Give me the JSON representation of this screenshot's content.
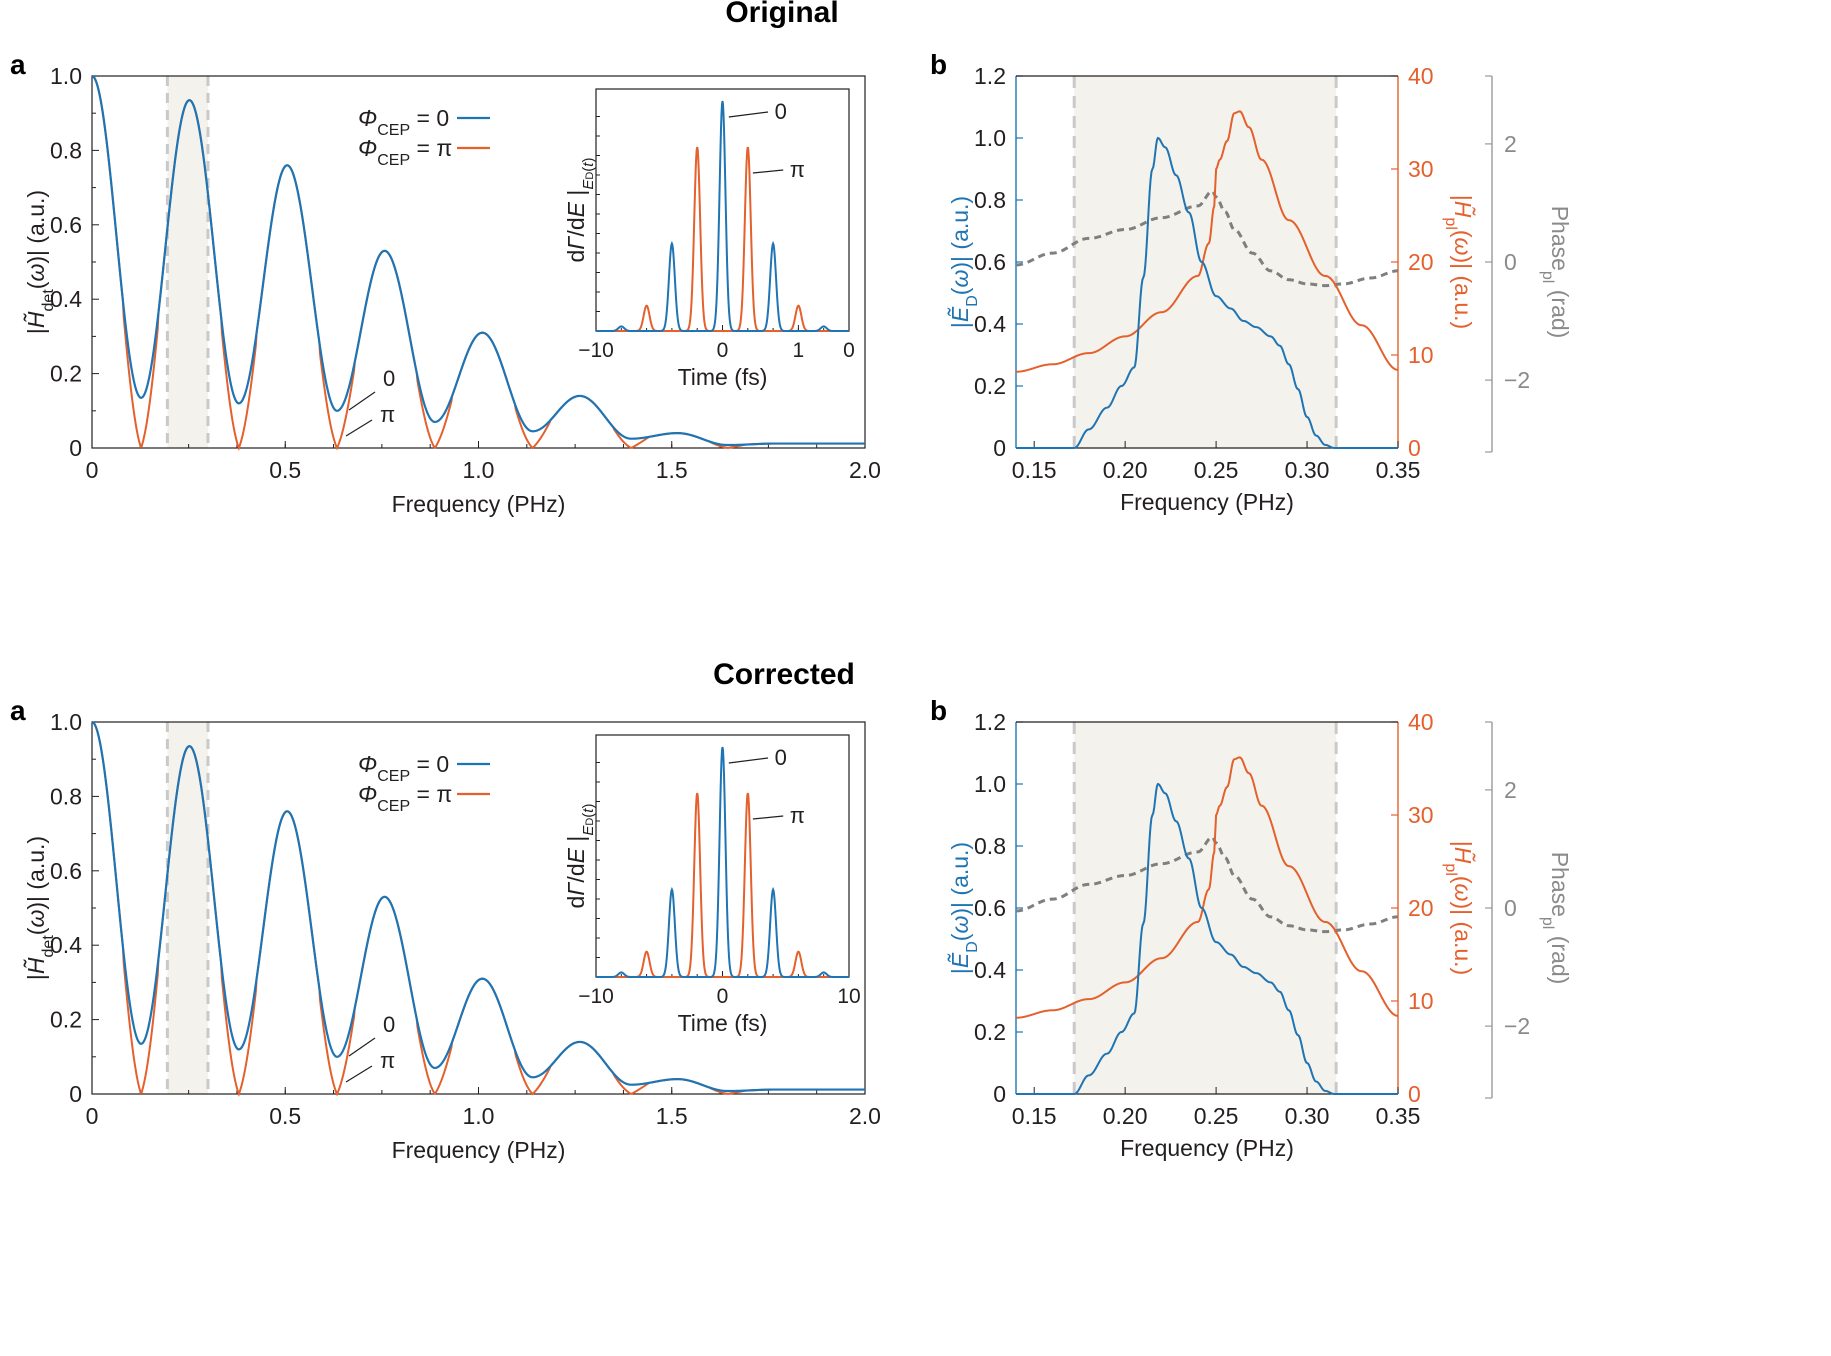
{
  "colors": {
    "phi0": "#1f74b4",
    "phipi": "#e4602c",
    "phase": "#7f7f7f",
    "shade": "#f4f2ec",
    "dashed": "#c9c9c9",
    "axis": "#231f20"
  },
  "titles": [
    "Original",
    "Corrected"
  ],
  "panel_labels": {
    "a": "a",
    "b": "b"
  },
  "chart_data": [
    {
      "panel": "Original a",
      "type": "line",
      "xlabel": "Frequency (PHz)",
      "ylabel": "|H̃det(ω)| (a.u.)",
      "xlim": [
        0,
        2.0
      ],
      "ylim": [
        0,
        1.0
      ],
      "xticks": [
        "0",
        "0.5",
        "1.0",
        "1.5",
        "2.0"
      ],
      "yticks": [
        "0",
        "0.2",
        "0.4",
        "0.6",
        "0.8",
        "1.0"
      ],
      "shaded_band": [
        0.195,
        0.3
      ],
      "legend": [
        "ΦCEP = 0",
        "ΦCEP = π"
      ],
      "annotations": [
        "0",
        "π"
      ],
      "series": [
        {
          "name": "ΦCEP = 0",
          "peaks": [
            {
              "x": 0,
              "y": 1.0
            },
            {
              "x": 0.252,
              "y": 0.935
            },
            {
              "x": 0.505,
              "y": 0.76
            },
            {
              "x": 0.757,
              "y": 0.53
            },
            {
              "x": 1.01,
              "y": 0.31
            },
            {
              "x": 1.262,
              "y": 0.14
            },
            {
              "x": 1.515,
              "y": 0.04
            },
            {
              "x": 1.77,
              "y": 0.01
            },
            {
              "x": 2.0,
              "y": 0.01
            }
          ],
          "troughs": [
            {
              "x": 0.127,
              "y": 0.135
            },
            {
              "x": 0.38,
              "y": 0.12
            },
            {
              "x": 0.634,
              "y": 0.1
            },
            {
              "x": 0.887,
              "y": 0.07
            },
            {
              "x": 1.14,
              "y": 0.05
            },
            {
              "x": 1.395,
              "y": 0.025
            },
            {
              "x": 1.645,
              "y": 0.008
            }
          ]
        },
        {
          "name": "ΦCEP = π",
          "troughs_to_zero_at": [
            0.127,
            0.38,
            0.634,
            0.887,
            1.14,
            1.395,
            1.645
          ]
        }
      ],
      "inset": {
        "xlabel": "Time (fs)",
        "ylabel": "dΓ/dE |ED(t)",
        "xticks": [
          "−10",
          "0",
          "1",
          "0"
        ],
        "xlim": [
          -10,
          10
        ],
        "series": [
          {
            "name": "0",
            "peaks": [
              {
                "x": -4,
                "y": 0.38
              },
              {
                "x": 0,
                "y": 1.0
              },
              {
                "x": 4,
                "y": 0.38
              },
              {
                "x": -8,
                "y": 0.02
              },
              {
                "x": 8,
                "y": 0.02
              }
            ]
          },
          {
            "name": "π",
            "peaks": [
              {
                "x": -2,
                "y": 0.8
              },
              {
                "x": 2,
                "y": 0.8
              },
              {
                "x": -6,
                "y": 0.11
              },
              {
                "x": 6,
                "y": 0.11
              }
            ]
          }
        ]
      }
    },
    {
      "panel": "Original b",
      "type": "line",
      "xlabel": "Frequency (PHz)",
      "ylabel_left": "|ẼD(ω)| (a.u.)",
      "ylabel_right": "|H̃pl(ω)| (a.u.)",
      "ylabel_right2": "Phasepl (rad)",
      "xlim": [
        0.14,
        0.35
      ],
      "ylim_left": [
        0,
        1.2
      ],
      "ylim_right": [
        0,
        40
      ],
      "ylim_phase": [
        -3.15,
        3.15
      ],
      "xticks": [
        "0.15",
        "0.20",
        "0.25",
        "0.30",
        "0.35"
      ],
      "yticks_left": [
        "0",
        "0.2",
        "0.4",
        "0.6",
        "0.8",
        "1.0",
        "1.2"
      ],
      "yticks_right": [
        "0",
        "10",
        "20",
        "30",
        "40"
      ],
      "yticks_phase": [
        "−2",
        "0",
        "2"
      ],
      "shaded_band": [
        0.172,
        0.316
      ],
      "series": [
        {
          "name": "|ẼD(ω)|",
          "x": [
            0.14,
            0.16,
            0.172,
            0.18,
            0.19,
            0.198,
            0.205,
            0.21,
            0.215,
            0.218,
            0.222,
            0.228,
            0.235,
            0.242,
            0.25,
            0.258,
            0.265,
            0.272,
            0.28,
            0.285,
            0.29,
            0.295,
            0.3,
            0.305,
            0.31,
            0.315,
            0.32,
            0.33,
            0.35
          ],
          "y": [
            0,
            0,
            0,
            0.06,
            0.13,
            0.2,
            0.26,
            0.55,
            0.9,
            1.0,
            0.97,
            0.88,
            0.76,
            0.6,
            0.49,
            0.45,
            0.41,
            0.39,
            0.36,
            0.33,
            0.27,
            0.19,
            0.1,
            0.04,
            0.01,
            0,
            0,
            0,
            0
          ]
        },
        {
          "name": "|H̃pl(ω)|",
          "x": [
            0.14,
            0.16,
            0.18,
            0.2,
            0.22,
            0.24,
            0.246,
            0.249,
            0.25,
            0.252,
            0.256,
            0.26,
            0.263,
            0.268,
            0.275,
            0.29,
            0.31,
            0.33,
            0.35
          ],
          "y": [
            8.2,
            9.0,
            10.2,
            12.0,
            14.6,
            18.5,
            22,
            26,
            30,
            31,
            33,
            36,
            36.2,
            34.5,
            31,
            24.5,
            18.5,
            13.2,
            8.4
          ]
        },
        {
          "name": "Phasepl",
          "x": [
            0.14,
            0.16,
            0.18,
            0.2,
            0.22,
            0.24,
            0.248,
            0.25,
            0.255,
            0.26,
            0.27,
            0.28,
            0.29,
            0.3,
            0.31,
            0.32,
            0.335,
            0.35
          ],
          "y": [
            -0.05,
            0.15,
            0.4,
            0.55,
            0.75,
            0.95,
            1.2,
            1.1,
            0.85,
            0.55,
            0.15,
            -0.15,
            -0.3,
            -0.37,
            -0.4,
            -0.37,
            -0.27,
            -0.15
          ]
        }
      ]
    },
    {
      "panel": "Corrected a",
      "type": "line",
      "xlabel": "Frequency (PHz)",
      "ylabel": "|H̃det(ω)| (a.u.)",
      "xlim": [
        0,
        2.0
      ],
      "ylim": [
        0,
        1.0
      ],
      "xticks": [
        "0",
        "0.5",
        "1.0",
        "1.5",
        "2.0"
      ],
      "yticks": [
        "0",
        "0.2",
        "0.4",
        "0.6",
        "0.8",
        "1.0"
      ],
      "shaded_band": [
        0.195,
        0.3
      ],
      "legend": [
        "ΦCEP = 0",
        "ΦCEP = π"
      ],
      "annotations": [
        "0",
        "π"
      ],
      "inset": {
        "xlabel": "Time (fs)",
        "ylabel": "dΓ/dE |ED(t)",
        "xticks": [
          "−10",
          "0",
          "10"
        ],
        "xlim": [
          -10,
          10
        ]
      }
    },
    {
      "panel": "Corrected b",
      "type": "line",
      "xlabel": "Frequency (PHz)",
      "ylabel_left": "|ẼD(ω)| (a.u.)",
      "ylabel_right": "|H̃pl(ω)| (a.u.)",
      "ylabel_right2": "Phasepl (rad)",
      "xticks": [
        "0.15",
        "0.20",
        "0.25",
        "0.30",
        "0.35"
      ],
      "yticks_left": [
        "0",
        "0.2",
        "0.4",
        "0.6",
        "0.8",
        "1.0",
        "1.2"
      ],
      "yticks_right": [
        "0",
        "10",
        "20",
        "30",
        "40"
      ],
      "yticks_phase": [
        "−2",
        "0",
        "2"
      ]
    }
  ]
}
